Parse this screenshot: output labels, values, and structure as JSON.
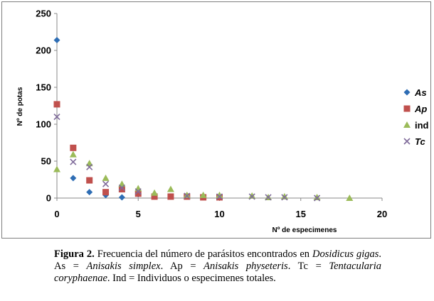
{
  "chart_data": {
    "type": "scatter",
    "xlabel": "Nº de especimenes",
    "ylabel": "Nº de potas",
    "xlim": [
      0,
      20
    ],
    "ylim": [
      0,
      250
    ],
    "xticks": [
      "0",
      "5",
      "10",
      "15",
      "20"
    ],
    "yticks": [
      "0",
      "50",
      "100",
      "150",
      "200",
      "250"
    ],
    "grid": false,
    "legend_position": "right",
    "series": [
      {
        "name": "As",
        "marker": "diamond",
        "color": "#2e6db4",
        "x": [
          0,
          1,
          2,
          3,
          4,
          5,
          6,
          7,
          8,
          9
        ],
        "y": [
          214,
          27,
          8,
          4,
          1,
          5,
          2,
          2,
          2,
          1
        ]
      },
      {
        "name": "Ap",
        "marker": "square",
        "color": "#c0504d",
        "x": [
          0,
          1,
          2,
          3,
          4,
          5,
          6,
          7,
          8,
          9,
          10
        ],
        "y": [
          127,
          68,
          24,
          8,
          12,
          6,
          2,
          2,
          2,
          1,
          1
        ]
      },
      {
        "name": "ind",
        "marker": "triangle",
        "color": "#9bbb59",
        "x": [
          0,
          1,
          2,
          3,
          4,
          5,
          6,
          7,
          8,
          9,
          10,
          12,
          13,
          14,
          16,
          18
        ],
        "y": [
          39,
          59,
          47,
          27,
          19,
          13,
          7,
          12,
          4,
          4,
          4,
          3,
          1,
          2,
          1,
          0
        ]
      },
      {
        "name": "Tc",
        "marker": "x",
        "color": "#7f6b9a",
        "x": [
          0,
          1,
          2,
          3,
          4,
          5,
          8,
          10,
          12,
          13,
          14,
          16
        ],
        "y": [
          110,
          49,
          42,
          19,
          14,
          9,
          3,
          2,
          2,
          1,
          1,
          0
        ]
      }
    ]
  },
  "caption": {
    "label": "Figura 2.",
    "p1": " Frecuencia del número de parásitos encontrados en ",
    "species": "Dosidicus gigas",
    "p2": ".   As = ",
    "as_name": "Anisakis simplex",
    "p3": ". Ap = ",
    "ap_name": "Anisakis physeteris",
    "p4": ". Tc = ",
    "tc_name": "Tentacularia coryphaenae",
    "p5": ". Ind = Individuos o especimenes totales."
  }
}
